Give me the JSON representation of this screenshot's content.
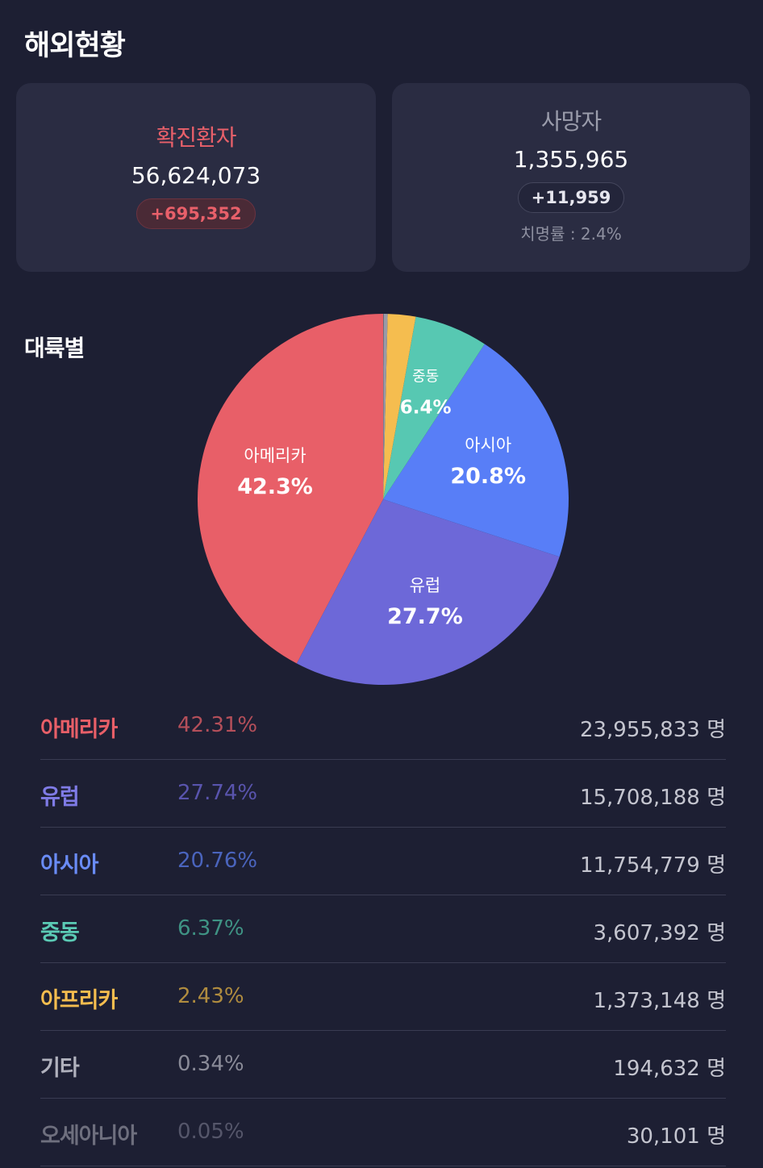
{
  "page_title": "해외현황",
  "confirmed": {
    "label": "확진환자",
    "value": "56,624,073",
    "delta": "+695,352"
  },
  "deaths": {
    "label": "사망자",
    "value": "1,355,965",
    "delta": "+11,959",
    "fatality_rate": "치명률 : 2.4%"
  },
  "section_title": "대륙별",
  "colors": {
    "americas": "#e85f68",
    "europe": "#6d68d8",
    "asia": "#587ef7",
    "middle_east": "#57c8b2",
    "africa": "#f5bd4f",
    "other": "#9a9aa8",
    "oceania": "#6b6b78"
  },
  "chart_data": {
    "type": "pie",
    "slices": [
      {
        "name": "아메리카",
        "value": 42.3,
        "label": "42.3%",
        "color": "#e85f68"
      },
      {
        "name": "유럽",
        "value": 27.7,
        "label": "27.7%",
        "color": "#6d68d8"
      },
      {
        "name": "아시아",
        "value": 20.8,
        "label": "20.8%",
        "color": "#587ef7"
      },
      {
        "name": "중동",
        "value": 6.4,
        "label": "6.4%",
        "color": "#57c8b2"
      },
      {
        "name": "아프리카",
        "value": 2.43,
        "label": "",
        "color": "#f5bd4f"
      },
      {
        "name": "기타",
        "value": 0.34,
        "label": "",
        "color": "#9a9aa8"
      },
      {
        "name": "오세아니아",
        "value": 0.05,
        "label": "",
        "color": "#6b6b78"
      }
    ]
  },
  "table": {
    "rows": [
      {
        "name": "아메리카",
        "pct": "42.31%",
        "count": "23,955,833 명",
        "name_color": "#e85f68",
        "pct_color": "#b44f5a"
      },
      {
        "name": "유럽",
        "pct": "27.74%",
        "count": "15,708,188 명",
        "name_color": "#7f7be6",
        "pct_color": "#5954ad"
      },
      {
        "name": "아시아",
        "pct": "20.76%",
        "count": "11,754,779 명",
        "name_color": "#6a8cf7",
        "pct_color": "#4a64bd"
      },
      {
        "name": "중동",
        "pct": "6.37%",
        "count": "3,607,392 명",
        "name_color": "#5bcab5",
        "pct_color": "#3f9384"
      },
      {
        "name": "아프리카",
        "pct": "2.43%",
        "count": "1,373,148 명",
        "name_color": "#f5bd4f",
        "pct_color": "#b08c3f"
      },
      {
        "name": "기타",
        "pct": "0.34%",
        "count": "194,632 명",
        "name_color": "#b0b1bd",
        "pct_color": "#8a8b98"
      },
      {
        "name": "오세아니아",
        "pct": "0.05%",
        "count": "30,101 명",
        "name_color": "#6e6f7e",
        "pct_color": "#55566a"
      }
    ]
  }
}
